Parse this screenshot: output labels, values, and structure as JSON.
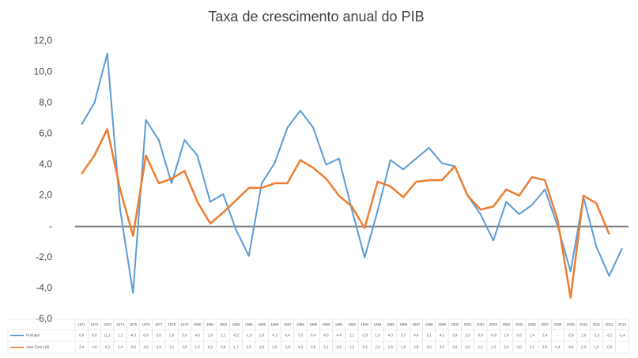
{
  "chart_data": {
    "type": "line",
    "title": "Taxa de crescimento anual do PIB",
    "categories": [
      "1971",
      "1972",
      "1973",
      "1974",
      "1975",
      "1976",
      "1977",
      "1978",
      "1979",
      "1980",
      "1981",
      "1982",
      "1983",
      "1984",
      "1985",
      "1986",
      "1987",
      "1988",
      "1989",
      "1990",
      "1991",
      "1992",
      "1993",
      "1994",
      "1995",
      "1996",
      "1997",
      "1998",
      "1999",
      "2000",
      "2001",
      "2002",
      "2003",
      "2004",
      "2005",
      "2006",
      "2007",
      "2008",
      "2009",
      "2010",
      "2011",
      "2012",
      "2013"
    ],
    "series": [
      {
        "name": "Portugal",
        "color": "#5b9bd5",
        "values": [
          6.6,
          8.0,
          11.2,
          1.1,
          -4.3,
          6.9,
          5.6,
          2.8,
          5.6,
          4.6,
          1.6,
          2.1,
          -0.2,
          -1.9,
          2.8,
          4.1,
          6.4,
          7.5,
          6.4,
          4.0,
          4.4,
          1.1,
          -2.0,
          1.0,
          4.3,
          3.7,
          4.4,
          5.1,
          4.1,
          3.9,
          2.0,
          0.8,
          -0.9,
          1.6,
          0.8,
          1.4,
          2.4,
          0.0,
          -2.9,
          1.9,
          -1.3,
          -3.2,
          -1.4
        ],
        "value_labels": [
          "6,6",
          "8,0",
          "11,2",
          "1,1",
          "-4,3",
          "6,9",
          "5,6",
          "2,8",
          "5,6",
          "4,6",
          "1,6",
          "2,1",
          "-0,2",
          "-1,9",
          "2,8",
          "4,1",
          "6,4",
          "7,5",
          "6,4",
          "4,0",
          "4,4",
          "1,1",
          "-2,0",
          "1,0",
          "4,3",
          "3,7",
          "4,4",
          "5,1",
          "4,1",
          "3,9",
          "2,0",
          "0,8",
          "-0,9",
          "1,6",
          "0,8",
          "1,4",
          "2,4",
          "-",
          "-2,9",
          "1,9",
          "-1,3",
          "-3,2",
          "-1,4"
        ]
      },
      {
        "name": "Area Euro (18)",
        "color": "#ed7d31",
        "values": [
          3.4,
          4.6,
          6.3,
          2.4,
          -0.6,
          4.6,
          2.8,
          3.1,
          3.6,
          1.6,
          0.2,
          0.9,
          1.7,
          2.5,
          2.5,
          2.8,
          2.8,
          4.3,
          3.8,
          3.1,
          2.0,
          1.3,
          -0.1,
          2.9,
          2.6,
          1.9,
          2.9,
          3.0,
          3.0,
          3.9,
          2.0,
          1.1,
          1.3,
          2.4,
          2.0,
          3.2,
          3.0,
          0.4,
          -4.6,
          2.0,
          1.5,
          -0.5,
          null
        ],
        "value_labels": [
          "3,4",
          "4,6",
          "6,3",
          "2,4",
          "-0,6",
          "4,6",
          "2,8",
          "3,1",
          "3,6",
          "1,6",
          "0,2",
          "0,9",
          "1,7",
          "2,5",
          "2,5",
          "2,8",
          "2,8",
          "4,3",
          "3,8",
          "3,1",
          "2,0",
          "1,3",
          "-0,1",
          "2,9",
          "2,6",
          "1,9",
          "2,9",
          "3,0",
          "3,0",
          "3,9",
          "2,0",
          "1,1",
          "1,3",
          "2,4",
          "2,0",
          "3,2",
          "3,0",
          "0,4",
          "-4,6",
          "2,0",
          "1,5",
          "-0,5",
          null
        ]
      }
    ],
    "ylim": [
      -6,
      12
    ],
    "yticks": [
      {
        "value": -6,
        "label": "-6,0"
      },
      {
        "value": -4,
        "label": "-4,0"
      },
      {
        "value": -2,
        "label": "-2,0"
      },
      {
        "value": 0,
        "label": "-"
      },
      {
        "value": 2,
        "label": "2,0"
      },
      {
        "value": 4,
        "label": "4,0"
      },
      {
        "value": 6,
        "label": "6,0"
      },
      {
        "value": 8,
        "label": "8,0"
      },
      {
        "value": 10,
        "label": "10,0"
      },
      {
        "value": 12,
        "label": "12,0"
      }
    ]
  }
}
